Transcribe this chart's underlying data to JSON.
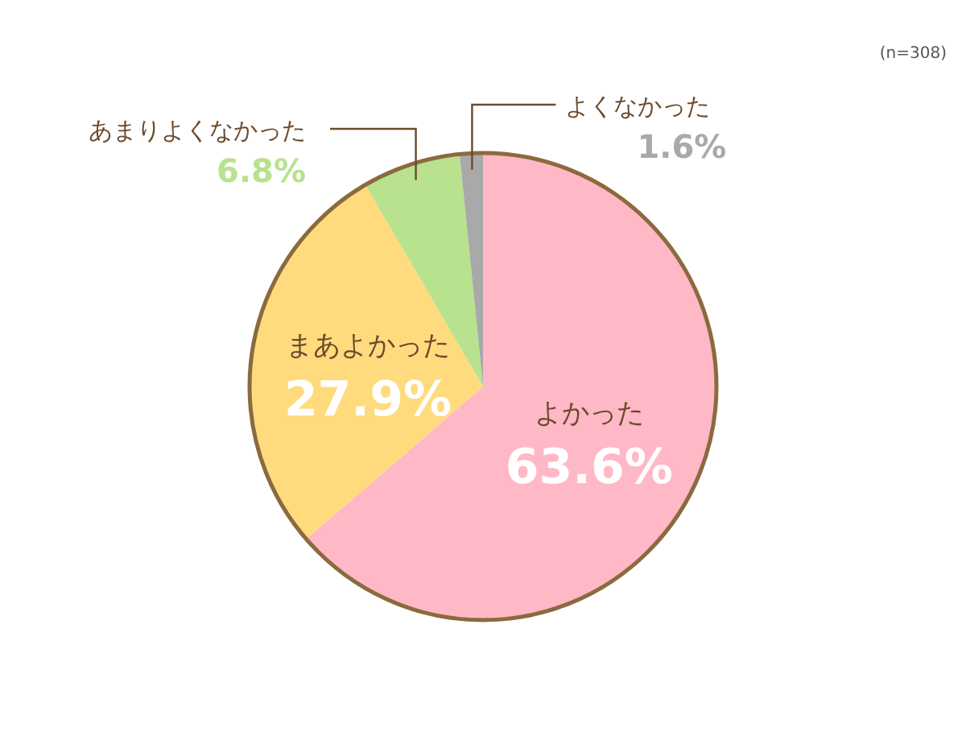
{
  "chart_data": {
    "type": "pie",
    "categories": [
      "よかった",
      "まあよかった",
      "あまりよくなかった",
      "よくなかった"
    ],
    "values": [
      63.6,
      27.9,
      6.8,
      1.6
    ],
    "colors": [
      "#ffb8c6",
      "#ffdb7e",
      "#b8e28e",
      "#a9a9a9"
    ],
    "value_labels": [
      "63.6%",
      "27.9%",
      "6.8%",
      "1.6%"
    ],
    "annotations": [
      "(n=308)"
    ]
  }
}
